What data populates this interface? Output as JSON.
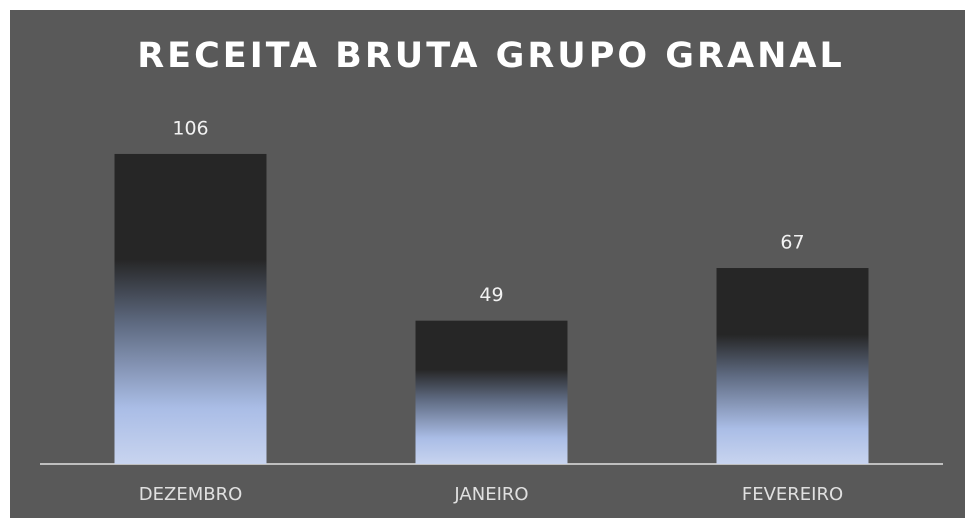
{
  "chart_data": {
    "type": "bar",
    "title": "RECEITA BRUTA GRUPO GRANAL",
    "categories": [
      "DEZEMBRO",
      "JANEIRO",
      "FEVEREIRO"
    ],
    "values": [
      106,
      49,
      67
    ]
  }
}
